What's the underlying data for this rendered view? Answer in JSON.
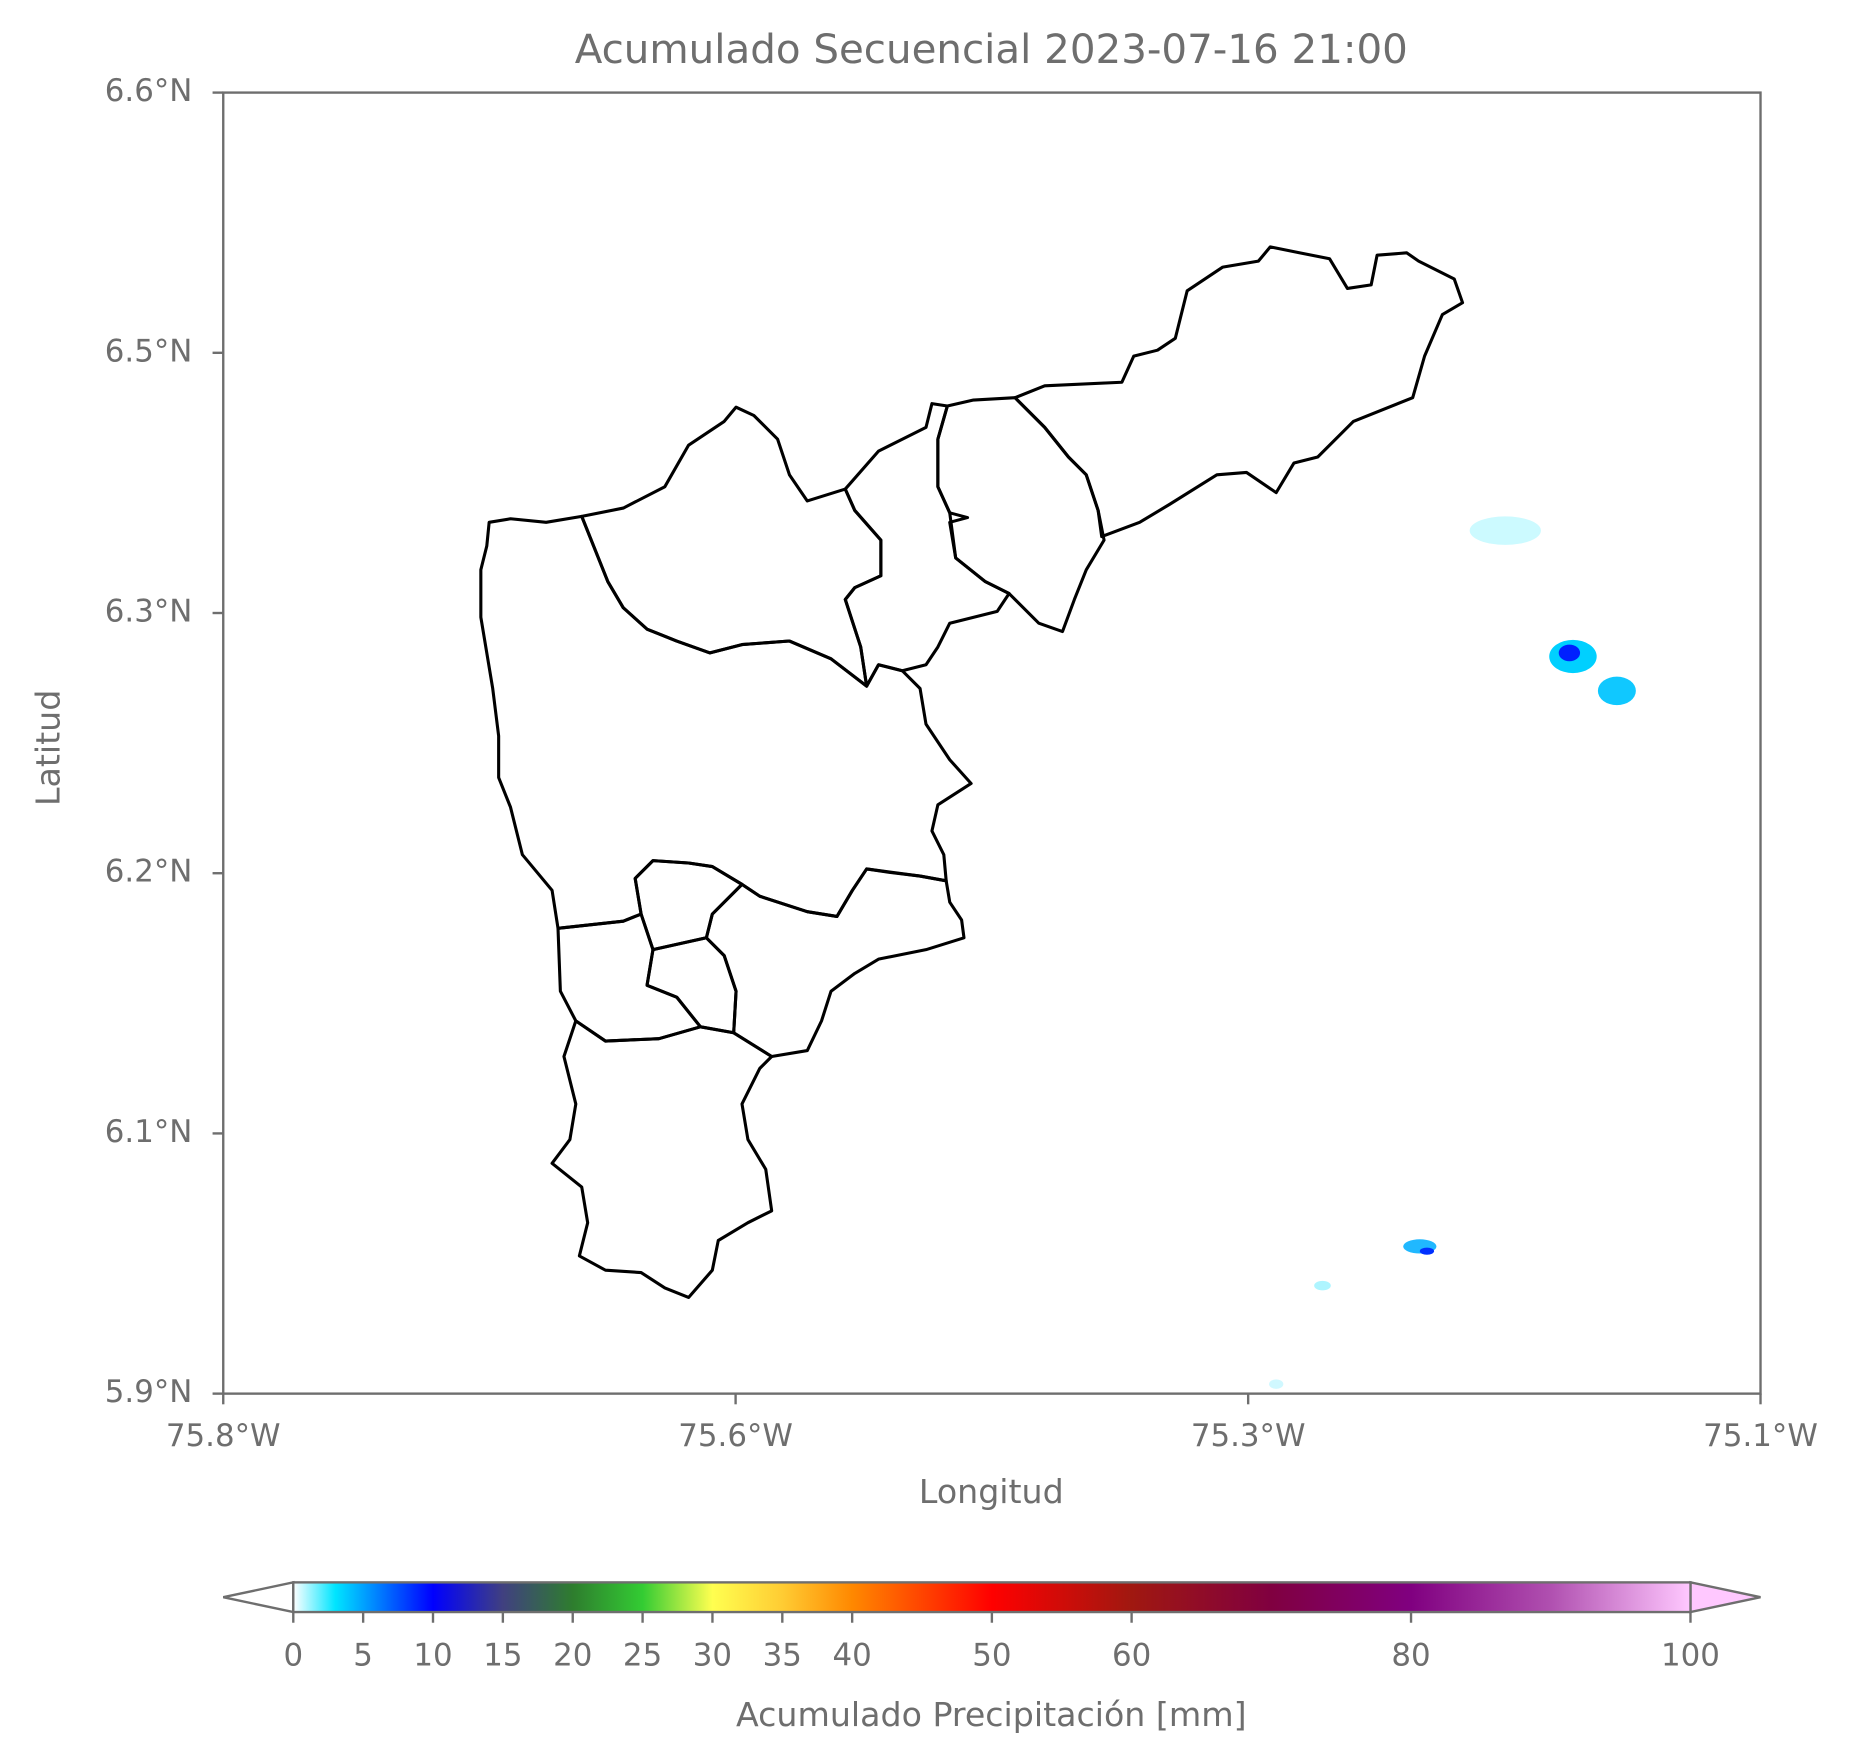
{
  "title": "Acumulado Secuencial 2023-07-16 21:00",
  "map": {
    "xlabel": "Longitud",
    "ylabel": "Latitud",
    "xlim": [
      -75.8,
      -75.1
    ],
    "ylim": [
      5.95,
      6.6
    ],
    "xticks": [
      {
        "value": -75.8,
        "label": "75.8°W"
      },
      {
        "value": -75.5667,
        "label": "75.6°W"
      },
      {
        "value": -75.3333,
        "label": "75.3°W"
      },
      {
        "value": -75.1,
        "label": "75.1°W"
      }
    ],
    "yticks": [
      {
        "value": 5.95,
        "label": "5.9°N"
      },
      {
        "value": 6.08,
        "label": "6.1°N"
      },
      {
        "value": 6.21,
        "label": "6.2°N"
      },
      {
        "value": 6.34,
        "label": "6.3°N"
      },
      {
        "value": 6.47,
        "label": "6.5°N"
      },
      {
        "value": 6.6,
        "label": "6.6°N"
      }
    ]
  },
  "colorbar": {
    "label": "Acumulado Precipitación [mm]",
    "lim": [
      0,
      100
    ],
    "ticks": [
      0,
      5,
      10,
      15,
      20,
      25,
      30,
      35,
      40,
      50,
      60,
      80,
      100
    ],
    "colors": [
      {
        "value": 0,
        "color": "#ffffff"
      },
      {
        "value": 3,
        "color": "#00e5ff"
      },
      {
        "value": 7,
        "color": "#0060ff"
      },
      {
        "value": 10,
        "color": "#0000ff"
      },
      {
        "value": 15,
        "color": "#404080"
      },
      {
        "value": 20,
        "color": "#2e7d2e"
      },
      {
        "value": 25,
        "color": "#33cc33"
      },
      {
        "value": 30,
        "color": "#ffff50"
      },
      {
        "value": 35,
        "color": "#ffcc33"
      },
      {
        "value": 40,
        "color": "#ff8800"
      },
      {
        "value": 50,
        "color": "#ff0000"
      },
      {
        "value": 60,
        "color": "#a01810"
      },
      {
        "value": 70,
        "color": "#800040"
      },
      {
        "value": 80,
        "color": "#800080"
      },
      {
        "value": 90,
        "color": "#b050b0"
      },
      {
        "value": 100,
        "color": "#ffc8ff"
      }
    ]
  }
}
